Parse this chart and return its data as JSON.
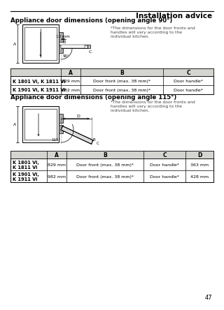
{
  "page_title": "Installation advice",
  "section1_title": "Appliance door dimensions (opening angle 90°)",
  "section1_note": "*The dimensions for the door fronts and\nhandles will vary according to the\nindividual kitchen.",
  "section1_headers": [
    "",
    "A",
    "B",
    "C"
  ],
  "section1_rows": [
    [
      "K 1801 Vi, K 1811 Vi",
      "829 mm",
      "Door front (max. 38 mm)*",
      "Door handle*"
    ],
    [
      "K 1901 Vi, K 1911 Vi",
      "982 mm",
      "Door front (max. 38 mm)*",
      "Door handle*"
    ]
  ],
  "section2_title": "Appliance door dimensions (opening angle 115°)",
  "section2_note": "*The dimensions for the door fronts and\nhandles will vary according to the\nindividual kitchen.",
  "section2_headers": [
    "",
    "A",
    "B",
    "C",
    "D"
  ],
  "section2_rows": [
    [
      "K 1801 Vi,\nK 1811 Vi",
      "829 mm",
      "Door front (max. 38 mm)*",
      "Door handle*",
      "363 mm"
    ],
    [
      "K 1901 Vi,\nK 1911 Vi",
      "982 mm",
      "Door front (max. 38 mm)*",
      "Door handle*",
      "428 mm"
    ]
  ],
  "page_number": "47"
}
